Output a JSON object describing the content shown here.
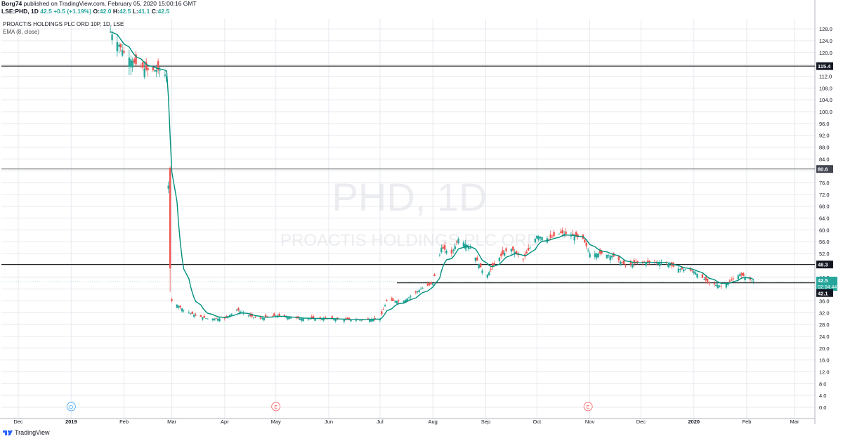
{
  "header": {
    "author": "Borg74",
    "published": "published on TradingView.com, February 05, 2020 15:00:16 GMT",
    "symbol": "LSE:PHD, 1D",
    "price": "42.5",
    "change": "+0.5 (+1.19%)",
    "ohlc_o_label": "O:",
    "ohlc_o": "42.0",
    "ohlc_h_label": "H:",
    "ohlc_h": "42.5",
    "ohlc_l_label": "L:",
    "ohlc_l": "41.1",
    "ohlc_c_label": "C:",
    "ohlc_c": "42.5"
  },
  "legend": {
    "title": "PROACTIS HOLDINGS PLC ORD 10P, 1D, LSE",
    "indicator": "EMA (8, close)"
  },
  "watermark": {
    "symbol": "PHD, 1D",
    "name": "PROACTIS HOLDINGS PLC ORD"
  },
  "footer": {
    "brand": "TradingView"
  },
  "colors": {
    "up": "#26a69a",
    "down": "#ef5350",
    "ema": "#008f7e",
    "grid": "#e6e9ee",
    "hline": "#000000"
  },
  "chart_data": {
    "type": "candlestick",
    "ylim": [
      -2,
      130
    ],
    "y_ticks": [
      "0.0",
      "4.0",
      "8.0",
      "12.0",
      "16.0",
      "20.0",
      "24.0",
      "28.0",
      "32.0",
      "36.0",
      "40.0",
      "44.0",
      "48.0",
      "52.0",
      "56.0",
      "60.0",
      "64.0",
      "68.0",
      "72.0",
      "76.0",
      "80.0",
      "84.0",
      "88.0",
      "92.0",
      "96.0",
      "100.0",
      "104.0",
      "108.0",
      "112.0",
      "116.0",
      "120.0",
      "124.0",
      "128.0"
    ],
    "x_ticks": [
      "Dec",
      "2019",
      "Feb",
      "Mar",
      "Apr",
      "May",
      "Jun",
      "Jul",
      "Aug",
      "Sep",
      "Oct",
      "Nov",
      "Dec",
      "2020",
      "Feb",
      "Mar"
    ],
    "horizontal_lines": [
      {
        "value": 115.4,
        "label": "115.4"
      },
      {
        "value": 80.6,
        "label": "80.6"
      },
      {
        "value": 48.3,
        "label": "48.3"
      },
      {
        "value": 42.1,
        "label": "42.1"
      }
    ],
    "last_price": {
      "value": 42.5,
      "label": "42.5",
      "countdown": "02:04:44"
    },
    "event_markers": [
      {
        "date": "2019-01",
        "letter": "D",
        "color": "#2196f3"
      },
      {
        "date": "2019-05",
        "letter": "E",
        "color": "#ef5350"
      },
      {
        "date": "2019-10-31",
        "letter": "E",
        "color": "#ef5350"
      }
    ],
    "close_series": {
      "dates": [
        "2019-01-24",
        "2019-02-01",
        "2019-02-08",
        "2019-02-15",
        "2019-02-22",
        "2019-02-26",
        "2019-02-28",
        "2019-03-01",
        "2019-03-08",
        "2019-03-15",
        "2019-03-22",
        "2019-04-01",
        "2019-04-08",
        "2019-04-15",
        "2019-04-22",
        "2019-05-01",
        "2019-05-15",
        "2019-06-01",
        "2019-06-15",
        "2019-07-01",
        "2019-07-05",
        "2019-07-15",
        "2019-07-25",
        "2019-08-01",
        "2019-08-06",
        "2019-08-12",
        "2019-08-16",
        "2019-08-23",
        "2019-09-01",
        "2019-09-08",
        "2019-09-15",
        "2019-09-23",
        "2019-10-01",
        "2019-10-08",
        "2019-10-15",
        "2019-10-22",
        "2019-10-28",
        "2019-11-01",
        "2019-11-08",
        "2019-11-15",
        "2019-11-22",
        "2019-12-01",
        "2019-12-08",
        "2019-12-15",
        "2019-12-22",
        "2020-01-01",
        "2020-01-10",
        "2020-01-17",
        "2020-01-21",
        "2020-01-28",
        "2020-02-05"
      ],
      "close": [
        127,
        120,
        116,
        114,
        114,
        112,
        38,
        36,
        33,
        31,
        30,
        30,
        33,
        31,
        30,
        31,
        30,
        30,
        29.5,
        30,
        36,
        36,
        40,
        42,
        54,
        52,
        57,
        54,
        44,
        50,
        54,
        50,
        58,
        57,
        59,
        58,
        57,
        52,
        52,
        51,
        48,
        49,
        49,
        49,
        47,
        46,
        42,
        41,
        42,
        45,
        42.5
      ]
    },
    "ema": {
      "name": "EMA (8, close)"
    }
  }
}
